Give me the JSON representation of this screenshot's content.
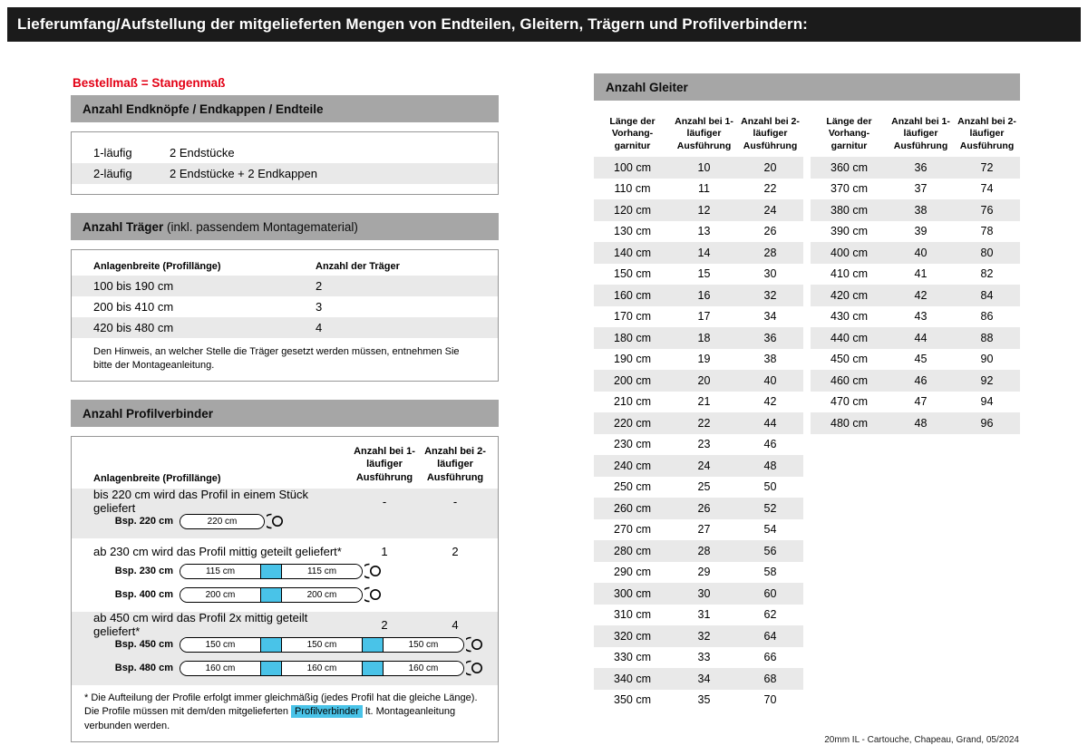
{
  "colors": {
    "title_bar": "#1b1b1b",
    "section_bar": "#a6a6a6",
    "row_alt": "#e9e9e9",
    "accent_red": "#e30015",
    "accent_cyan": "#49c3e8"
  },
  "header": {
    "title": "Lieferumfang/Aufstellung der mitgelieferten Mengen von Endteilen, Gleitern, Trägern und Profilverbindern:"
  },
  "subtitle": "Bestellmaß = Stangenmaß",
  "endteile": {
    "title": "Anzahl Endknöpfe / Endkappen / Endteile",
    "rows": [
      [
        "1-läufig",
        "2 Endstücke"
      ],
      [
        "2-läufig",
        "2 Endstücke + 2 Endkappen"
      ]
    ]
  },
  "traeger": {
    "title_bold": "Anzahl Träger",
    "title_rest": " (inkl. passendem Montagematerial)",
    "col_width": "Anlagenbreite (Profillänge)",
    "col_count": "Anzahl der Träger",
    "rows": [
      [
        "100 bis 190 cm",
        "2"
      ],
      [
        "200 bis 410 cm",
        "3"
      ],
      [
        "420 bis 480 cm",
        "4"
      ]
    ],
    "note": "Den Hinweis, an welcher Stelle die Träger gesetzt werden müssen, entnehmen Sie bitte der Montageanleitung."
  },
  "profilverbinder": {
    "title": "Anzahl Profilverbinder",
    "col_width": "Anlagenbreite (Profillänge)",
    "col_1laeufig": "Anzahl bei 1-läufiger Ausführung",
    "col_2laeufig": "Anzahl bei 2-läufiger Ausführung",
    "sections": [
      {
        "text": "bis 220 cm wird das Profil in einem Stück geliefert",
        "count_1": "-",
        "count_2": "-",
        "examples": [
          {
            "label": "Bsp. 220 cm",
            "segments": [
              "220 cm"
            ]
          }
        ]
      },
      {
        "text": "ab 230 cm wird das Profil mittig geteilt geliefert*",
        "count_1": "1",
        "count_2": "2",
        "examples": [
          {
            "label": "Bsp. 230 cm",
            "segments": [
              "115 cm",
              "115 cm"
            ]
          },
          {
            "label": "Bsp. 400 cm",
            "segments": [
              "200 cm",
              "200 cm"
            ]
          }
        ]
      },
      {
        "text": "ab 450 cm wird das Profil 2x mittig geteilt geliefert*",
        "count_1": "2",
        "count_2": "4",
        "examples": [
          {
            "label": "Bsp. 450 cm",
            "segments": [
              "150 cm",
              "150 cm",
              "150 cm"
            ]
          },
          {
            "label": "Bsp. 480 cm",
            "segments": [
              "160 cm",
              "160 cm",
              "160 cm"
            ]
          }
        ]
      }
    ],
    "footnote_pre": "* Die Aufteilung der Profile erfolgt immer gleichmäßig (jedes Profil hat die gleiche Länge). Die Profile müssen mit dem/den mitgelieferten ",
    "footnote_highlight": "Profilverbinder",
    "footnote_post": " lt. Montageanleitung verbunden werden."
  },
  "gleiter": {
    "title": "Anzahl Gleiter",
    "col_length": "Länge der Vorhang-garnitur",
    "col_1laeufig": "Anzahl bei 1-läufiger Ausführung",
    "col_2laeufig": "Anzahl bei 2-läufiger Ausführung",
    "tables": [
      {
        "rows": [
          [
            "100 cm",
            "10",
            "20"
          ],
          [
            "110 cm",
            "11",
            "22"
          ],
          [
            "120 cm",
            "12",
            "24"
          ],
          [
            "130 cm",
            "13",
            "26"
          ],
          [
            "140 cm",
            "14",
            "28"
          ],
          [
            "150 cm",
            "15",
            "30"
          ],
          [
            "160 cm",
            "16",
            "32"
          ],
          [
            "170 cm",
            "17",
            "34"
          ],
          [
            "180 cm",
            "18",
            "36"
          ],
          [
            "190 cm",
            "19",
            "38"
          ],
          [
            "200 cm",
            "20",
            "40"
          ],
          [
            "210 cm",
            "21",
            "42"
          ],
          [
            "220 cm",
            "22",
            "44"
          ],
          [
            "230 cm",
            "23",
            "46"
          ],
          [
            "240 cm",
            "24",
            "48"
          ],
          [
            "250 cm",
            "25",
            "50"
          ],
          [
            "260 cm",
            "26",
            "52"
          ],
          [
            "270 cm",
            "27",
            "54"
          ],
          [
            "280 cm",
            "28",
            "56"
          ],
          [
            "290 cm",
            "29",
            "58"
          ],
          [
            "300 cm",
            "30",
            "60"
          ],
          [
            "310 cm",
            "31",
            "62"
          ],
          [
            "320 cm",
            "32",
            "64"
          ],
          [
            "330 cm",
            "33",
            "66"
          ],
          [
            "340 cm",
            "34",
            "68"
          ],
          [
            "350 cm",
            "35",
            "70"
          ]
        ]
      },
      {
        "rows": [
          [
            "360 cm",
            "36",
            "72"
          ],
          [
            "370 cm",
            "37",
            "74"
          ],
          [
            "380 cm",
            "38",
            "76"
          ],
          [
            "390 cm",
            "39",
            "78"
          ],
          [
            "400 cm",
            "40",
            "80"
          ],
          [
            "410 cm",
            "41",
            "82"
          ],
          [
            "420 cm",
            "42",
            "84"
          ],
          [
            "430 cm",
            "43",
            "86"
          ],
          [
            "440 cm",
            "44",
            "88"
          ],
          [
            "450 cm",
            "45",
            "90"
          ],
          [
            "460 cm",
            "46",
            "92"
          ],
          [
            "470 cm",
            "47",
            "94"
          ],
          [
            "480 cm",
            "48",
            "96"
          ]
        ]
      }
    ]
  },
  "footer": "20mm IL - Cartouche, Chapeau, Grand, 05/2024"
}
